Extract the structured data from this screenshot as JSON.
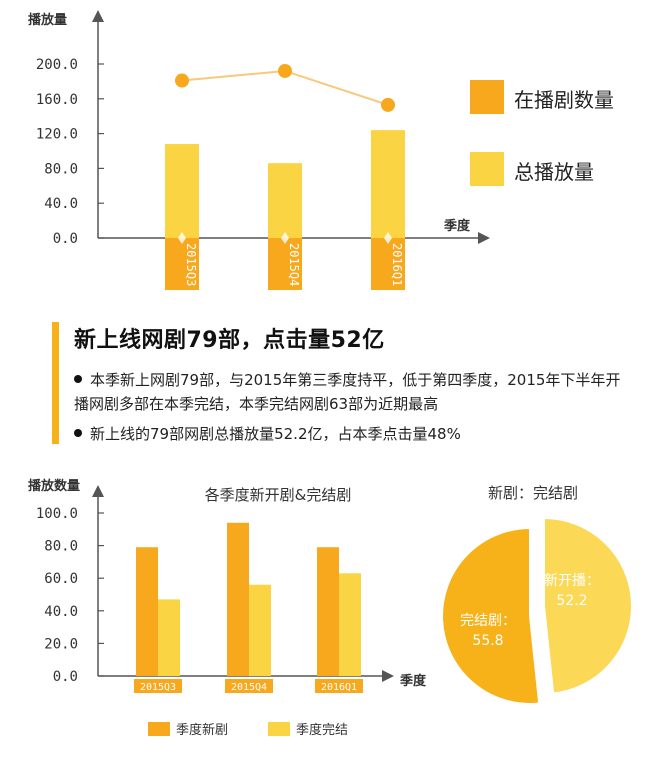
{
  "headline": "新上线网剧79部，点击量52亿",
  "bullets": [
    "本季新上网剧79部，与2015年第三季度持平，低于第四季度，2015年下半年开播网剧多部在本季完结，本季完结网剧63部为近期最高",
    "新上线的79部网剧总播放量52.2亿，占本季点击量48%"
  ],
  "colors": {
    "dark": "#f7a81c",
    "light": "#fbd443",
    "line": "#f9c87a",
    "pie_dark": "#f7b21a",
    "pie_light": "#fbd856"
  },
  "chart_data": [
    {
      "type": "bar",
      "title": "",
      "ylabel": "播放量",
      "xlabel": "季度",
      "categories": [
        "2015Q3",
        "2015Q4",
        "2016Q1"
      ],
      "ylim": [
        0,
        200
      ],
      "yticks": [
        "0.0",
        "40.0",
        "80.0",
        "120.0",
        "160.0",
        "200.0"
      ],
      "series": [
        {
          "name": "在播剧数量",
          "type": "line",
          "values": [
            181,
            192,
            153
          ]
        },
        {
          "name": "总播放量",
          "type": "bar",
          "values": [
            108,
            86,
            124
          ]
        }
      ],
      "legend": "right"
    },
    {
      "type": "bar",
      "title": "各季度新开剧&完结剧",
      "ylabel": "播放数量",
      "xlabel": "季度",
      "categories": [
        "2015Q3",
        "2015Q4",
        "2016Q1"
      ],
      "ylim": [
        0,
        100
      ],
      "yticks": [
        "0.0",
        "20.0",
        "40.0",
        "60.0",
        "80.0",
        "100.0"
      ],
      "series": [
        {
          "name": "季度新剧",
          "values": [
            79,
            94,
            79
          ]
        },
        {
          "name": "季度完结",
          "values": [
            47,
            56,
            63
          ]
        }
      ],
      "legend": "bottom"
    },
    {
      "type": "pie",
      "title": "新剧：完结剧",
      "slices": [
        {
          "label": "新开播：",
          "value": 52.2,
          "value_text": "52.2"
        },
        {
          "label": "完结剧：",
          "value": 55.8,
          "value_text": "55.8"
        }
      ]
    }
  ]
}
